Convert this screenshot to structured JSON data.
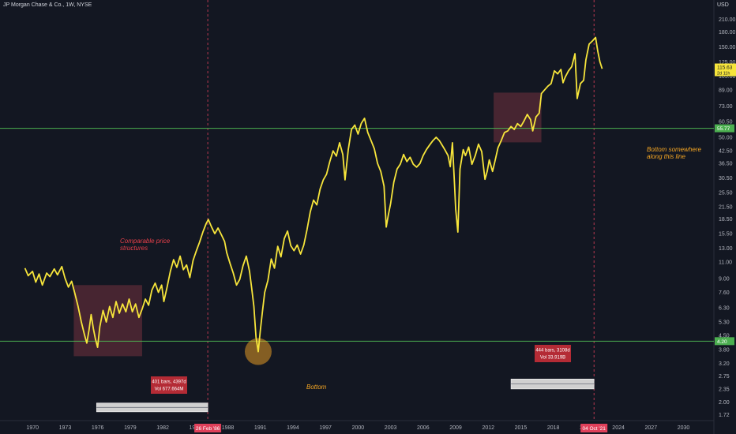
{
  "header": {
    "symbol_title": "JP Morgan Chase & Co., 1W, NYSE",
    "currency": "USD"
  },
  "colors": {
    "background": "#131722",
    "price_line": "#f7e53b",
    "hline": "#4caf50",
    "vline": "#e0405a",
    "box": "#5a2b37",
    "label_red": "#b42b35",
    "bar_grey": "#d0d0d0",
    "annotation_red": "#e8404a",
    "annotation_orange": "#f5a623",
    "circle": "#f5a623"
  },
  "annotations": {
    "comparable": "Comparable price\nstructures",
    "bottom": "Bottom",
    "bottom_line": "Bottom somewhere\nalong this line"
  },
  "measure_labels": {
    "left": {
      "line1": "401 bars, 4397d",
      "line2": "Vol 677.664M"
    },
    "right": {
      "line1": "444 bars, 3108d",
      "line2": "Vol 33.919B"
    }
  },
  "price_tags": {
    "current_price": "115.63",
    "current_sub": "2d 11h",
    "upper_line": "55.77",
    "lower_line": "4.20"
  },
  "date_tags": {
    "left": "26 Feb '86",
    "right": "04 Oct '21"
  },
  "chart_data": {
    "type": "line",
    "title": "JP Morgan Chase & Co., 1W, NYSE",
    "y_scale": "log",
    "y_unit": "USD",
    "xlim": [
      1967,
      2032.8
    ],
    "ylim": [
      1.6,
      265
    ],
    "x_ticks": [
      "1970",
      "1973",
      "1976",
      "1979",
      "1982",
      "1985",
      "1988",
      "1991",
      "1994",
      "1997",
      "2000",
      "2003",
      "2006",
      "2009",
      "2012",
      "2015",
      "2018",
      "2021",
      "2024",
      "2027",
      "2030"
    ],
    "y_ticks": [
      "1.72",
      "2.00",
      "2.35",
      "2.75",
      "3.20",
      "3.80",
      "4.50",
      "5.30",
      "6.30",
      "7.60",
      "9.00",
      "11.00",
      "13.00",
      "15.50",
      "18.50",
      "21.50",
      "25.50",
      "30.50",
      "36.50",
      "42.50",
      "50.00",
      "60.50",
      "73.00",
      "89.00",
      "105.00",
      "125.00",
      "150.00",
      "180.00",
      "210.00"
    ],
    "horizontal_lines": [
      55.77,
      4.2
    ],
    "vertical_lines": [
      1986.15,
      2021.75
    ],
    "rectangles": [
      {
        "x0": 1973.8,
        "x1": 1980.1,
        "y_low": 3.5,
        "y_high": 8.3
      },
      {
        "x0": 2012.5,
        "x1": 2016.9,
        "y_low": 47,
        "y_high": 86
      }
    ],
    "highlight_circle": {
      "x": 1990.8,
      "y": 3.7
    },
    "measure_bars": [
      {
        "x0": 1975.9,
        "x1": 1986.15,
        "y_low": 1.78,
        "y_high": 1.98
      },
      {
        "x0": 2014.1,
        "x1": 2021.75,
        "y_low": 2.35,
        "y_high": 2.65
      }
    ],
    "series": [
      {
        "values": [
          [
            1969.3,
            10.2
          ],
          [
            1969.6,
            9.3
          ],
          [
            1970.0,
            9.8
          ],
          [
            1970.3,
            8.6
          ],
          [
            1970.6,
            9.5
          ],
          [
            1970.9,
            8.3
          ],
          [
            1971.3,
            9.6
          ],
          [
            1971.6,
            9.2
          ],
          [
            1972.0,
            10.1
          ],
          [
            1972.3,
            9.4
          ],
          [
            1972.7,
            10.4
          ],
          [
            1973.0,
            9.0
          ],
          [
            1973.3,
            8.1
          ],
          [
            1973.6,
            8.7
          ],
          [
            1973.9,
            7.5
          ],
          [
            1974.2,
            6.4
          ],
          [
            1974.5,
            5.3
          ],
          [
            1974.8,
            4.5
          ],
          [
            1975.0,
            4.1
          ],
          [
            1975.2,
            4.8
          ],
          [
            1975.4,
            5.8
          ],
          [
            1975.6,
            4.9
          ],
          [
            1975.8,
            4.3
          ],
          [
            1976.0,
            3.9
          ],
          [
            1976.2,
            5.0
          ],
          [
            1976.5,
            6.1
          ],
          [
            1976.8,
            5.3
          ],
          [
            1977.1,
            6.4
          ],
          [
            1977.4,
            5.6
          ],
          [
            1977.7,
            6.8
          ],
          [
            1978.0,
            5.9
          ],
          [
            1978.3,
            6.6
          ],
          [
            1978.6,
            6.0
          ],
          [
            1978.9,
            7.0
          ],
          [
            1979.2,
            6.0
          ],
          [
            1979.5,
            6.6
          ],
          [
            1979.8,
            5.6
          ],
          [
            1980.1,
            6.2
          ],
          [
            1980.4,
            7.0
          ],
          [
            1980.7,
            6.5
          ],
          [
            1981.0,
            7.8
          ],
          [
            1981.3,
            8.5
          ],
          [
            1981.6,
            7.6
          ],
          [
            1981.9,
            8.3
          ],
          [
            1982.1,
            6.8
          ],
          [
            1982.4,
            8.1
          ],
          [
            1982.7,
            9.8
          ],
          [
            1983.0,
            11.3
          ],
          [
            1983.3,
            10.3
          ],
          [
            1983.6,
            11.8
          ],
          [
            1983.9,
            10.0
          ],
          [
            1984.2,
            10.6
          ],
          [
            1984.5,
            9.1
          ],
          [
            1984.8,
            11.2
          ],
          [
            1985.1,
            12.6
          ],
          [
            1985.4,
            14.0
          ],
          [
            1985.7,
            15.8
          ],
          [
            1986.0,
            17.5
          ],
          [
            1986.2,
            18.4
          ],
          [
            1986.5,
            16.8
          ],
          [
            1986.8,
            15.5
          ],
          [
            1987.1,
            16.6
          ],
          [
            1987.4,
            15.3
          ],
          [
            1987.7,
            14.1
          ],
          [
            1987.9,
            12.3
          ],
          [
            1988.2,
            10.8
          ],
          [
            1988.5,
            9.6
          ],
          [
            1988.8,
            8.3
          ],
          [
            1989.1,
            8.9
          ],
          [
            1989.4,
            10.5
          ],
          [
            1989.7,
            11.8
          ],
          [
            1990.0,
            9.8
          ],
          [
            1990.2,
            8.0
          ],
          [
            1990.4,
            6.4
          ],
          [
            1990.6,
            4.4
          ],
          [
            1990.8,
            3.7
          ],
          [
            1991.0,
            4.8
          ],
          [
            1991.2,
            6.1
          ],
          [
            1991.4,
            7.6
          ],
          [
            1991.7,
            8.8
          ],
          [
            1992.0,
            11.4
          ],
          [
            1992.3,
            10.2
          ],
          [
            1992.6,
            13.3
          ],
          [
            1992.9,
            11.7
          ],
          [
            1993.2,
            14.6
          ],
          [
            1993.5,
            16.0
          ],
          [
            1993.8,
            13.4
          ],
          [
            1994.1,
            12.6
          ],
          [
            1994.4,
            13.5
          ],
          [
            1994.7,
            12.1
          ],
          [
            1995.0,
            13.5
          ],
          [
            1995.3,
            16.3
          ],
          [
            1995.6,
            20.2
          ],
          [
            1995.9,
            23.3
          ],
          [
            1996.2,
            22.0
          ],
          [
            1996.5,
            26.6
          ],
          [
            1996.8,
            29.8
          ],
          [
            1997.1,
            31.9
          ],
          [
            1997.4,
            37.3
          ],
          [
            1997.7,
            42.4
          ],
          [
            1998.0,
            39.8
          ],
          [
            1998.3,
            46.8
          ],
          [
            1998.6,
            40.6
          ],
          [
            1998.8,
            29.8
          ],
          [
            1999.1,
            43.0
          ],
          [
            1999.4,
            55.0
          ],
          [
            1999.7,
            58.0
          ],
          [
            2000.0,
            52.0
          ],
          [
            2000.3,
            59.2
          ],
          [
            2000.6,
            63.0
          ],
          [
            2000.9,
            53.0
          ],
          [
            2001.2,
            48.0
          ],
          [
            2001.5,
            43.5
          ],
          [
            2001.8,
            36.4
          ],
          [
            2002.1,
            33.0
          ],
          [
            2002.4,
            27.6
          ],
          [
            2002.6,
            16.8
          ],
          [
            2002.8,
            19.5
          ],
          [
            2003.0,
            22.3
          ],
          [
            2003.3,
            29.0
          ],
          [
            2003.6,
            34.0
          ],
          [
            2003.9,
            36.1
          ],
          [
            2004.2,
            40.6
          ],
          [
            2004.5,
            37.2
          ],
          [
            2004.8,
            39.2
          ],
          [
            2005.1,
            36.0
          ],
          [
            2005.4,
            34.8
          ],
          [
            2005.7,
            36.3
          ],
          [
            2006.0,
            40.0
          ],
          [
            2006.3,
            43.0
          ],
          [
            2006.6,
            45.5
          ],
          [
            2006.9,
            48.0
          ],
          [
            2007.2,
            50.0
          ],
          [
            2007.5,
            48.0
          ],
          [
            2007.8,
            45.0
          ],
          [
            2008.0,
            43.0
          ],
          [
            2008.3,
            40.0
          ],
          [
            2008.5,
            35.0
          ],
          [
            2008.7,
            46.8
          ],
          [
            2008.9,
            28.0
          ],
          [
            2009.0,
            21.0
          ],
          [
            2009.2,
            15.8
          ],
          [
            2009.4,
            34.0
          ],
          [
            2009.7,
            43.0
          ],
          [
            2009.9,
            40.0
          ],
          [
            2010.2,
            44.4
          ],
          [
            2010.5,
            36.0
          ],
          [
            2010.8,
            40.0
          ],
          [
            2011.1,
            46.0
          ],
          [
            2011.4,
            42.0
          ],
          [
            2011.7,
            30.0
          ],
          [
            2011.9,
            33.0
          ],
          [
            2012.1,
            38.0
          ],
          [
            2012.4,
            33.0
          ],
          [
            2012.6,
            37.0
          ],
          [
            2012.9,
            44.0
          ],
          [
            2013.2,
            48.0
          ],
          [
            2013.5,
            53.0
          ],
          [
            2013.8,
            54.0
          ],
          [
            2014.1,
            57.0
          ],
          [
            2014.4,
            55.0
          ],
          [
            2014.7,
            59.0
          ],
          [
            2015.0,
            57.0
          ],
          [
            2015.3,
            61.0
          ],
          [
            2015.6,
            66.0
          ],
          [
            2015.9,
            62.0
          ],
          [
            2016.1,
            54.0
          ],
          [
            2016.4,
            64.0
          ],
          [
            2016.7,
            67.0
          ],
          [
            2016.9,
            85.0
          ],
          [
            2017.2,
            89.0
          ],
          [
            2017.5,
            93.0
          ],
          [
            2017.8,
            96.0
          ],
          [
            2018.1,
            112.0
          ],
          [
            2018.4,
            108.0
          ],
          [
            2018.7,
            114.0
          ],
          [
            2018.9,
            97.0
          ],
          [
            2019.1,
            104.0
          ],
          [
            2019.4,
            112.0
          ],
          [
            2019.7,
            118.0
          ],
          [
            2020.0,
            138.0
          ],
          [
            2020.2,
            80.0
          ],
          [
            2020.5,
            96.0
          ],
          [
            2020.8,
            100.0
          ],
          [
            2021.0,
            128.0
          ],
          [
            2021.3,
            155.0
          ],
          [
            2021.6,
            161.0
          ],
          [
            2021.9,
            168.0
          ],
          [
            2022.1,
            142.0
          ],
          [
            2022.3,
            125.0
          ],
          [
            2022.5,
            115.0
          ]
        ]
      }
    ]
  }
}
